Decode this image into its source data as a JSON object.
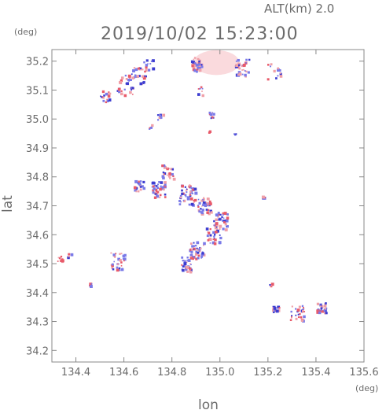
{
  "header": {
    "altitude": "ALT(km)  2.0",
    "timestamp": "2019/10/02  15:23:00"
  },
  "axes": {
    "x_title": "lon",
    "y_title": "lat",
    "x_unit": "(deg)",
    "y_unit": "(deg)",
    "xlim": [
      134.3,
      135.6
    ],
    "ylim": [
      34.16,
      35.24
    ],
    "x_ticks": [
      "134.4",
      "134.6",
      "134.8",
      "135.0",
      "135.2",
      "135.4",
      "135.6"
    ],
    "x_tick_values": [
      134.4,
      134.6,
      134.8,
      135.0,
      135.2,
      135.4,
      135.6
    ],
    "y_ticks": [
      "34.2",
      "34.3",
      "34.4",
      "34.5",
      "34.6",
      "34.7",
      "34.8",
      "34.9",
      "35.0",
      "35.1",
      "35.2"
    ],
    "y_tick_values": [
      34.2,
      34.3,
      34.4,
      34.5,
      34.6,
      34.7,
      34.8,
      34.9,
      35.0,
      35.1,
      35.2
    ]
  },
  "colors": {
    "axis": "#888888",
    "text": "#6b6b6b",
    "positive": "#f0a0a8",
    "positive_strong": "#e85a6a",
    "positive_light": "#fadadd",
    "negative": "#7a7ae8",
    "negative_strong": "#3c3cd0"
  },
  "chart_data": {
    "type": "scatter",
    "xlim": [
      134.3,
      135.6
    ],
    "ylim": [
      34.16,
      35.24
    ],
    "grid": false,
    "clusters": [
      {
        "lon": 134.985,
        "lat": 35.195,
        "kind": "blob",
        "rx": 0.095,
        "ry": 0.043
      },
      {
        "lon": 134.9,
        "lat": 35.19,
        "kind": "mix",
        "spread": 0.025,
        "n": 40
      },
      {
        "lon": 135.09,
        "lat": 35.18,
        "kind": "mix",
        "spread": 0.03,
        "n": 30
      },
      {
        "lon": 135.22,
        "lat": 35.17,
        "kind": "mix",
        "spread": 0.03,
        "n": 15
      },
      {
        "lon": 134.92,
        "lat": 35.1,
        "kind": "mix",
        "spread": 0.015,
        "n": 8
      },
      {
        "lon": 134.7,
        "lat": 35.19,
        "kind": "mix",
        "spread": 0.02,
        "n": 10
      },
      {
        "lon": 134.66,
        "lat": 35.15,
        "kind": "mix",
        "spread": 0.03,
        "n": 25
      },
      {
        "lon": 134.6,
        "lat": 35.12,
        "kind": "mix",
        "spread": 0.035,
        "n": 30
      },
      {
        "lon": 134.52,
        "lat": 35.08,
        "kind": "mix",
        "spread": 0.02,
        "n": 20
      },
      {
        "lon": 134.75,
        "lat": 35.01,
        "kind": "mix",
        "spread": 0.012,
        "n": 8
      },
      {
        "lon": 134.71,
        "lat": 34.975,
        "kind": "mix",
        "spread": 0.008,
        "n": 4
      },
      {
        "lon": 134.965,
        "lat": 35.015,
        "kind": "mix",
        "spread": 0.012,
        "n": 12
      },
      {
        "lon": 135.06,
        "lat": 34.95,
        "kind": "neg",
        "spread": 0.004,
        "n": 3
      },
      {
        "lon": 134.95,
        "lat": 34.96,
        "kind": "pos",
        "spread": 0.004,
        "n": 2
      },
      {
        "lon": 134.78,
        "lat": 34.82,
        "kind": "mix",
        "spread": 0.025,
        "n": 25
      },
      {
        "lon": 134.66,
        "lat": 34.77,
        "kind": "mix",
        "spread": 0.02,
        "n": 18
      },
      {
        "lon": 134.74,
        "lat": 34.76,
        "kind": "mix",
        "spread": 0.03,
        "n": 40
      },
      {
        "lon": 134.86,
        "lat": 34.74,
        "kind": "mix",
        "spread": 0.035,
        "n": 50
      },
      {
        "lon": 134.93,
        "lat": 34.7,
        "kind": "mix",
        "spread": 0.03,
        "n": 45
      },
      {
        "lon": 135.0,
        "lat": 34.65,
        "kind": "mix",
        "spread": 0.03,
        "n": 40
      },
      {
        "lon": 134.97,
        "lat": 34.6,
        "kind": "mix",
        "spread": 0.03,
        "n": 35
      },
      {
        "lon": 134.9,
        "lat": 34.55,
        "kind": "mix",
        "spread": 0.03,
        "n": 40
      },
      {
        "lon": 134.86,
        "lat": 34.5,
        "kind": "mix",
        "spread": 0.025,
        "n": 35
      },
      {
        "lon": 135.18,
        "lat": 34.73,
        "kind": "mix",
        "spread": 0.006,
        "n": 4
      },
      {
        "lon": 134.57,
        "lat": 34.51,
        "kind": "mix",
        "spread": 0.03,
        "n": 30
      },
      {
        "lon": 134.33,
        "lat": 34.52,
        "kind": "pos",
        "spread": 0.01,
        "n": 10
      },
      {
        "lon": 134.37,
        "lat": 34.53,
        "kind": "mix",
        "spread": 0.008,
        "n": 5
      },
      {
        "lon": 134.46,
        "lat": 34.43,
        "kind": "mix",
        "spread": 0.006,
        "n": 4
      },
      {
        "lon": 135.21,
        "lat": 34.43,
        "kind": "mix",
        "spread": 0.006,
        "n": 4
      },
      {
        "lon": 135.23,
        "lat": 34.35,
        "kind": "mix",
        "spread": 0.015,
        "n": 15
      },
      {
        "lon": 135.32,
        "lat": 34.33,
        "kind": "mix",
        "spread": 0.03,
        "n": 30
      },
      {
        "lon": 135.42,
        "lat": 34.35,
        "kind": "mix",
        "spread": 0.02,
        "n": 25
      }
    ]
  }
}
